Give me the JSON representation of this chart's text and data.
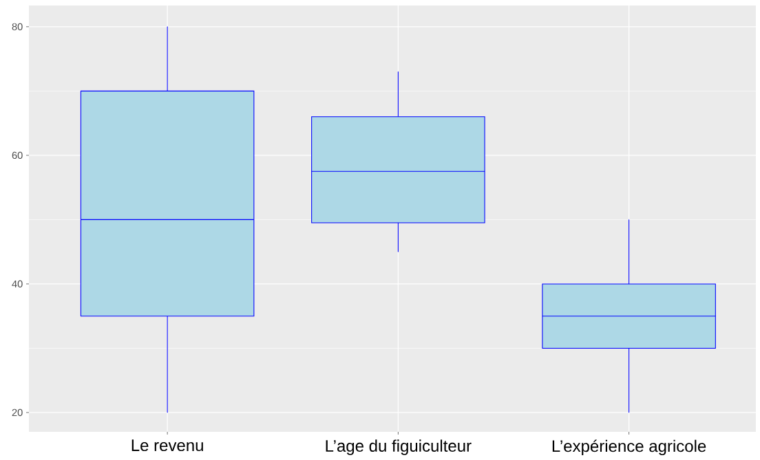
{
  "chart_data": {
    "type": "box",
    "categories": [
      "Le revenu",
      "L’age du figuiculteur",
      "L’expérience agricole"
    ],
    "boxes": [
      {
        "low": 20,
        "q1": 35,
        "median": 50,
        "q3": 70,
        "high": 80
      },
      {
        "low": 45,
        "q1": 49.5,
        "median": 57.5,
        "q3": 66,
        "high": 73
      },
      {
        "low": 20,
        "q1": 30,
        "median": 35,
        "q3": 40,
        "high": 50
      }
    ],
    "color": "#add8e6",
    "ylim": [
      17,
      83.3
    ],
    "yticks": [
      20,
      40,
      60,
      80
    ],
    "grid": true
  }
}
